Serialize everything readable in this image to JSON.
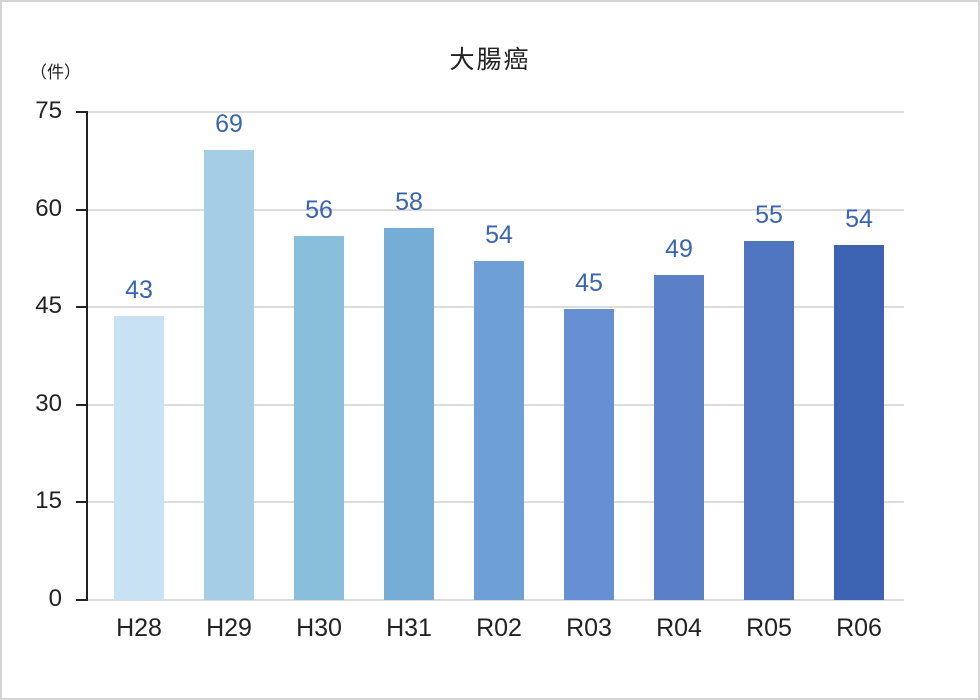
{
  "chart_data": {
    "type": "bar",
    "title": "大腸癌",
    "ylabel": "（件）",
    "xlabel": "",
    "categories": [
      "H28",
      "H29",
      "H30",
      "H31",
      "R02",
      "R03",
      "R04",
      "R05",
      "R06"
    ],
    "values": [
      43,
      69,
      56,
      58,
      54,
      45,
      49,
      55,
      54
    ],
    "bar_heights_visual": [
      43.6,
      69.1,
      55.9,
      57.1,
      52.1,
      44.7,
      50.0,
      55.2,
      54.6
    ],
    "ylim": [
      0,
      75
    ],
    "yticks": [
      "0",
      "15",
      "30",
      "45",
      "60",
      "75"
    ],
    "grid": true,
    "legend": null,
    "colors": [
      "#c8e2f4",
      "#a5cde6",
      "#89bedb",
      "#76add6",
      "#6e9fd6",
      "#6690d3",
      "#5b80c8",
      "#4f74c0",
      "#3b63b2"
    ],
    "value_label_color": "#3a64b0"
  }
}
